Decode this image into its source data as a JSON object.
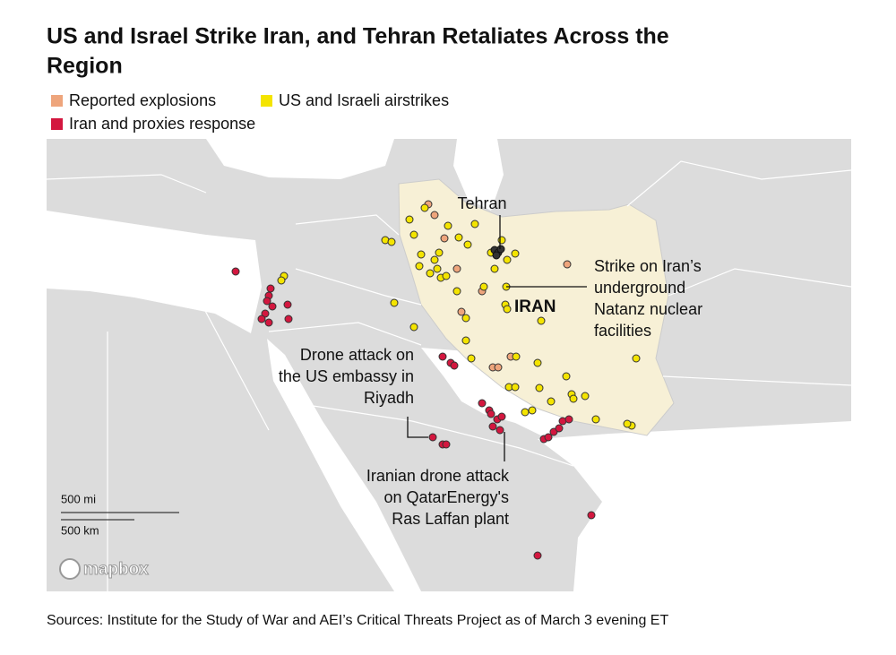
{
  "title": [
    "US and Israel Strike Iran, and Tehran Retaliates Across the",
    "Region"
  ],
  "legend": [
    {
      "label": "Reported explosions",
      "color": "#eea57c"
    },
    {
      "label": "US and Israeli airstrikes",
      "color": "#f4e400"
    },
    {
      "label": "Iran and proxies response",
      "color": "#d3173f"
    }
  ],
  "map": {
    "country_label": "IRAN",
    "city_label": "Tehran",
    "annotations": [
      {
        "lines": [
          "Strike on Iran’s",
          "underground",
          "Natanz nuclear",
          "facilities"
        ]
      },
      {
        "lines": [
          "Drone attack on",
          "the US embassy in",
          "Riyadh"
        ]
      },
      {
        "lines": [
          "Iranian drone attack",
          "on QatarEnergy's",
          "Ras Laffan plant"
        ]
      }
    ],
    "scale": {
      "miles": "500 mi",
      "kilometers": "500 km"
    },
    "attribution": "mapbox"
  },
  "source": "Sources: Institute for the Study of War and AEI’s Critical Threats Project as of March 3 evening ET"
}
